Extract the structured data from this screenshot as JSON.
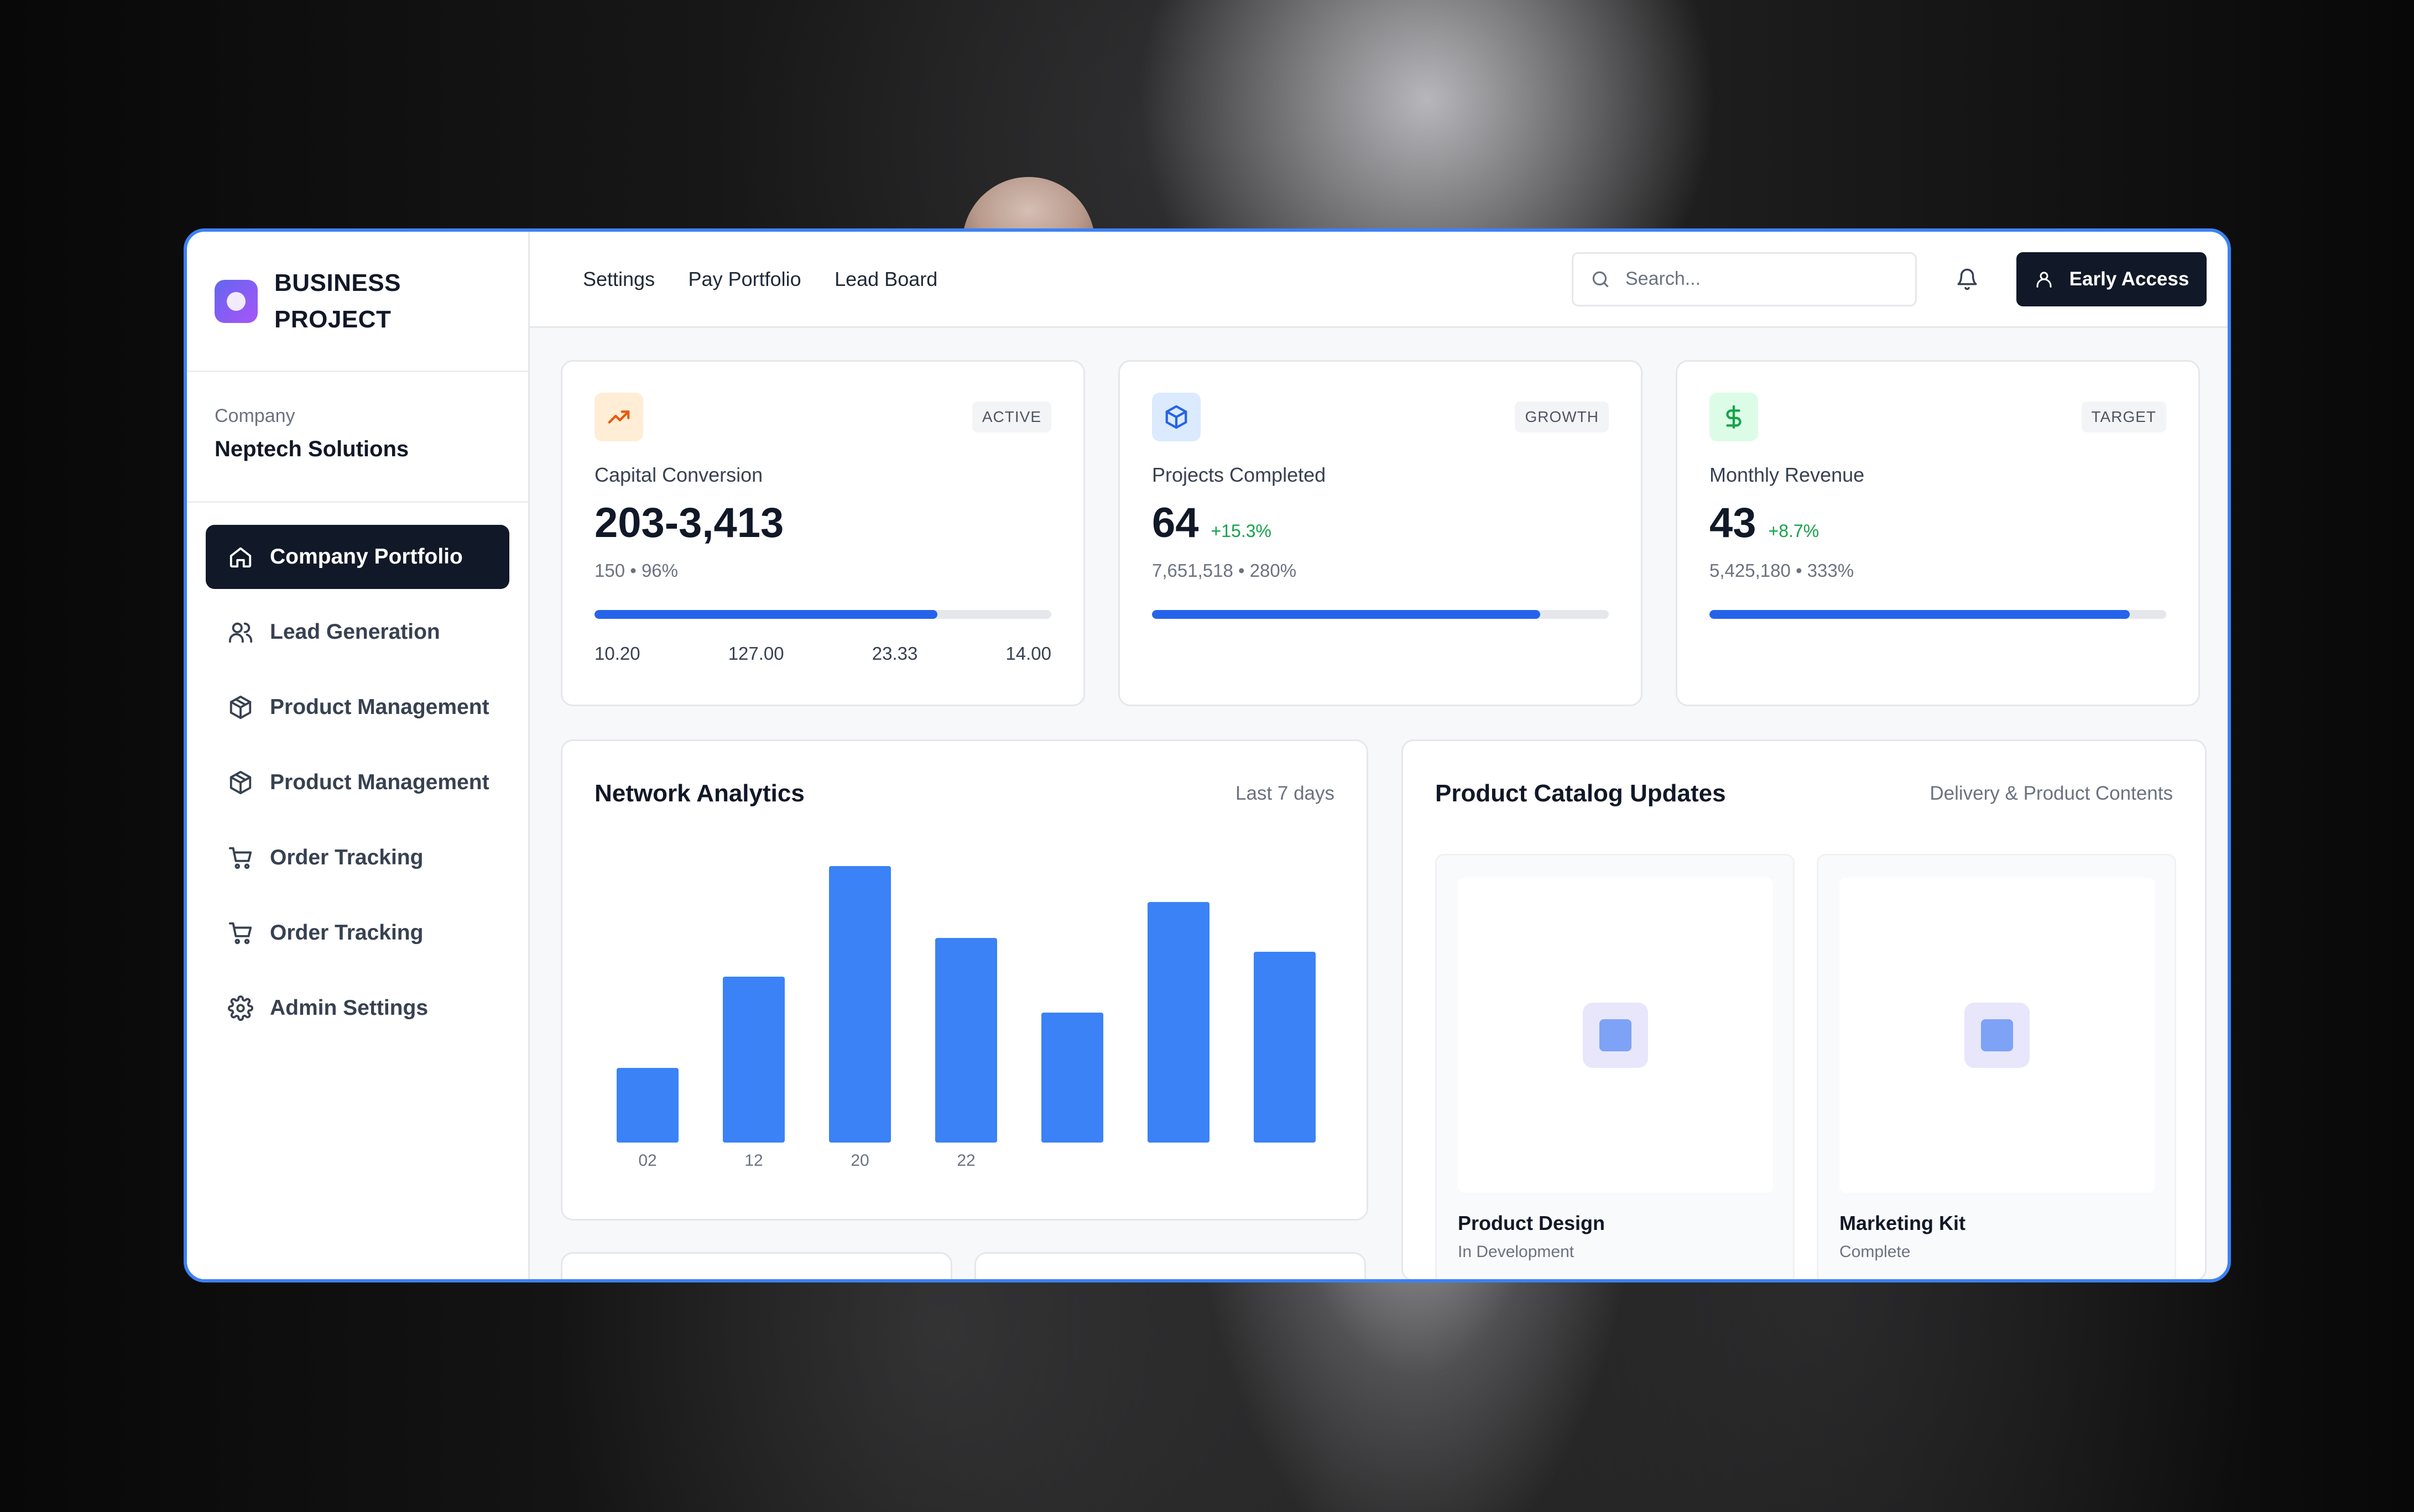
{
  "brand": {
    "line1": "BUSINESS",
    "line2": "PROJECT"
  },
  "company": {
    "label": "Company",
    "name": "Neptech Solutions"
  },
  "sidebar": {
    "items": [
      {
        "label": "Company Portfolio",
        "icon": "home-icon",
        "active": true
      },
      {
        "label": "Lead Generation",
        "icon": "users-icon"
      },
      {
        "label": "Product Management",
        "icon": "package-icon"
      },
      {
        "label": "Product Management",
        "icon": "package-icon"
      },
      {
        "label": "Order Tracking",
        "icon": "cart-icon"
      },
      {
        "label": "Order Tracking",
        "icon": "cart-icon"
      },
      {
        "label": "Admin Settings",
        "icon": "gear-icon"
      }
    ]
  },
  "topnav": {
    "items": [
      "Settings",
      "Pay Portfolio",
      "Lead Board"
    ]
  },
  "search": {
    "placeholder": "Search..."
  },
  "cta": {
    "label": "Early Access"
  },
  "stats": [
    {
      "icon": "trending-up-icon",
      "badge": "ACTIVE",
      "label": "Capital Conversion",
      "value": "203-3,413",
      "change": "",
      "sub": "150 • 96%",
      "progress": 0.75,
      "ticks": [
        "10.20",
        "127.00",
        "23.33",
        "14.00"
      ],
      "accent": "#ea580c"
    },
    {
      "icon": "package-icon",
      "badge": "GROWTH",
      "label": "Projects Completed",
      "value": "64",
      "change": "+15.3%",
      "sub": "7,651,518 • 280%",
      "progress": 0.85,
      "accent": "#2563eb"
    },
    {
      "icon": "dollar-icon",
      "badge": "TARGET",
      "label": "Monthly Revenue",
      "value": "43",
      "change": "+8.7%",
      "sub": "5,425,180 • 333%",
      "progress": 0.92,
      "accent": "#16a34a"
    }
  ],
  "network": {
    "title": "Network Analytics",
    "range": "Last 7 days"
  },
  "chart_data": {
    "type": "bar",
    "categories": [
      "02",
      "12",
      "20",
      "22",
      "",
      "",
      ""
    ],
    "values": [
      27,
      60,
      100,
      74,
      47,
      87,
      69
    ],
    "ylim": [
      0,
      100
    ],
    "color": "#3b82f6",
    "grid": false
  },
  "catalog": {
    "title": "Product Catalog Updates",
    "meta": "Delivery & Product Contents",
    "items": [
      {
        "name": "Product Design",
        "status": "In Development"
      },
      {
        "name": "Marketing Kit",
        "status": "Complete"
      }
    ]
  }
}
